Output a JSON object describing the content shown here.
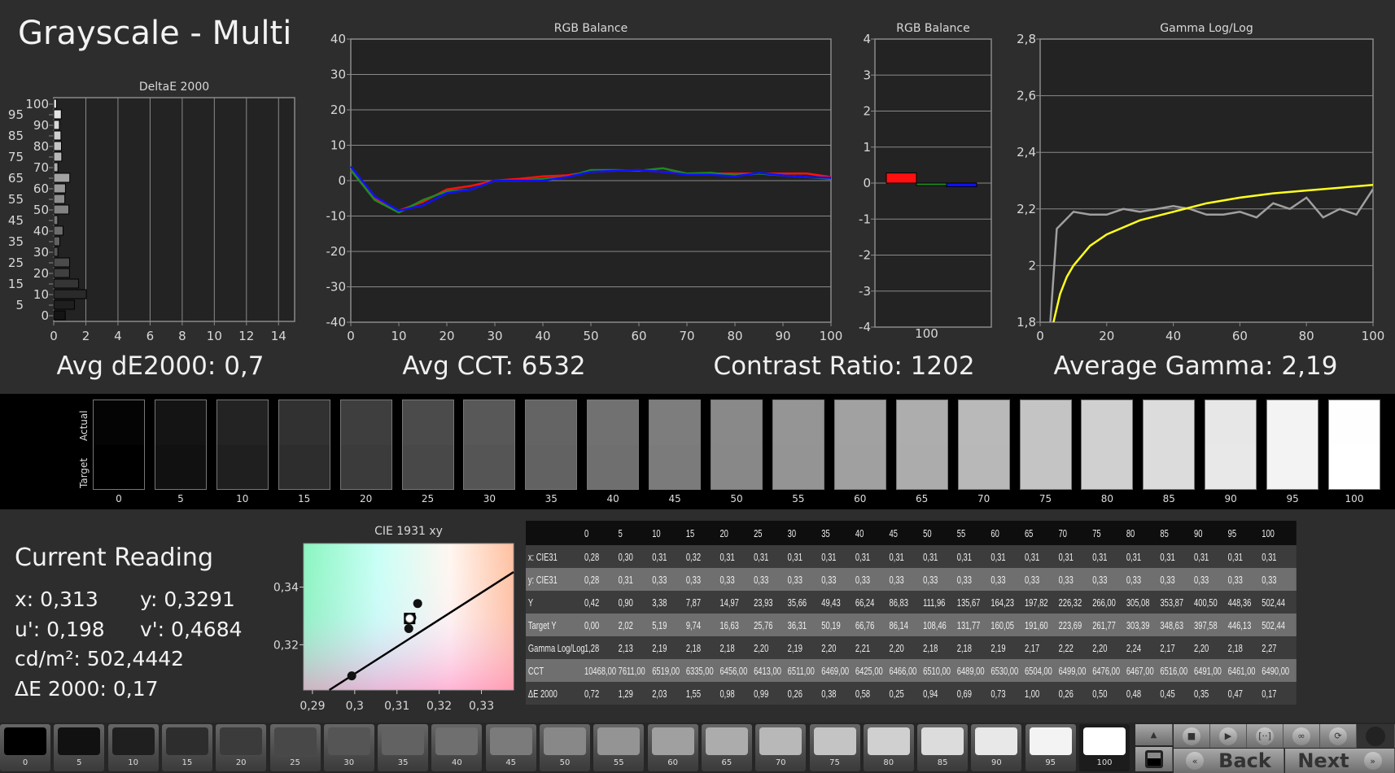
{
  "title": "Grayscale - Multi",
  "summary": {
    "avg_de": "Avg dE2000: 0,7",
    "avg_cct": "Avg CCT: 6532",
    "contrast": "Contrast Ratio: 1202",
    "avg_gamma": "Average Gamma: 2,19"
  },
  "colors": {
    "background": "#2d2d2d",
    "plot_bg": "#232323",
    "grid": "#8a8a8a",
    "red": "#ff1010",
    "green": "#1f8a1f",
    "blue": "#1010ff",
    "gamma_target": "#ffff20",
    "gamma_actual": "#a0a0a0"
  },
  "chart_data": [
    {
      "type": "bar",
      "orientation": "horizontal",
      "title": "DeltaE 2000",
      "categories": [
        0,
        5,
        10,
        15,
        20,
        25,
        30,
        35,
        40,
        45,
        50,
        55,
        60,
        65,
        70,
        75,
        80,
        85,
        90,
        95,
        100
      ],
      "values": [
        0.72,
        1.29,
        2.03,
        1.55,
        0.98,
        0.99,
        0.26,
        0.38,
        0.58,
        0.25,
        0.94,
        0.69,
        0.73,
        1.0,
        0.26,
        0.5,
        0.48,
        0.45,
        0.35,
        0.47,
        0.17
      ],
      "xlim": [
        0,
        15
      ],
      "xticks": [
        "0",
        "2",
        "4",
        "6",
        "8",
        "10",
        "12",
        "14"
      ],
      "grid": true
    },
    {
      "type": "line",
      "title": "RGB Balance",
      "x": [
        0,
        5,
        10,
        15,
        20,
        25,
        30,
        35,
        40,
        45,
        50,
        55,
        60,
        65,
        70,
        75,
        80,
        85,
        90,
        95,
        100
      ],
      "series": [
        {
          "color": "red",
          "values": [
            3,
            -5,
            -8.5,
            -6,
            -2.5,
            -1.5,
            0,
            0.5,
            1.2,
            1.5,
            2.5,
            2.8,
            3,
            2.5,
            2,
            2,
            2,
            2,
            2,
            2,
            1
          ]
        },
        {
          "color": "green",
          "values": [
            3,
            -5.5,
            -9,
            -5.5,
            -3,
            -2.5,
            0,
            0,
            0.5,
            1,
            3,
            3,
            2.8,
            3.5,
            2,
            2.2,
            1.5,
            2,
            1.5,
            1,
            0.5
          ]
        },
        {
          "color": "blue",
          "values": [
            4,
            -4.5,
            -8.5,
            -7,
            -3.5,
            -2.5,
            0,
            0,
            0,
            1,
            2.5,
            2.8,
            3,
            2.5,
            1.7,
            1.7,
            1.2,
            2.2,
            1.5,
            1,
            0.8
          ]
        }
      ],
      "xlim": [
        0,
        100
      ],
      "ylim": [
        -40,
        40
      ],
      "xticks": [
        "0",
        "10",
        "20",
        "30",
        "40",
        "50",
        "60",
        "70",
        "80",
        "90",
        "100"
      ],
      "yticks": [
        "40",
        "30",
        "20",
        "10",
        "0",
        "-10",
        "-20",
        "-30",
        "-40"
      ],
      "grid": true
    },
    {
      "type": "bar",
      "title": "RGB Balance",
      "categories": [
        "100"
      ],
      "series": [
        {
          "color": "red",
          "values": [
            0.28
          ]
        },
        {
          "color": "green",
          "values": [
            -0.05
          ]
        },
        {
          "color": "blue",
          "values": [
            -0.1
          ]
        }
      ],
      "ylim": [
        -4,
        4
      ],
      "yticks": [
        "4",
        "3",
        "2",
        "1",
        "0",
        "-1",
        "-2",
        "-3",
        "-4"
      ],
      "grid": true
    },
    {
      "type": "line",
      "title": "Gamma Log/Log",
      "x": [
        0,
        5,
        10,
        15,
        20,
        25,
        30,
        35,
        40,
        45,
        50,
        55,
        60,
        65,
        70,
        75,
        80,
        85,
        90,
        95,
        100
      ],
      "series": [
        {
          "color": "gamma_actual",
          "values": [
            1.28,
            2.13,
            2.19,
            2.18,
            2.18,
            2.2,
            2.19,
            2.2,
            2.21,
            2.2,
            2.18,
            2.18,
            2.19,
            2.17,
            2.22,
            2.2,
            2.24,
            2.17,
            2.2,
            2.18,
            2.27
          ]
        },
        {
          "color": "gamma_target",
          "x": [
            4,
            6,
            8,
            10,
            15,
            20,
            30,
            40,
            50,
            60,
            70,
            80,
            90,
            100
          ],
          "values": [
            1.8,
            1.9,
            1.96,
            2.0,
            2.07,
            2.11,
            2.16,
            2.19,
            2.22,
            2.24,
            2.255,
            2.265,
            2.275,
            2.285
          ]
        }
      ],
      "xlim": [
        0,
        100
      ],
      "ylim": [
        1.8,
        2.8
      ],
      "xticks": [
        "0",
        "20",
        "40",
        "60",
        "80",
        "100"
      ],
      "yticks": [
        "2,8",
        "2,6",
        "2,4",
        "2,2",
        "2",
        "1,8"
      ],
      "grid": true
    },
    {
      "type": "scatter",
      "title": "CIE 1931 xy",
      "xlim": [
        0.2879,
        0.3376
      ],
      "ylim": [
        0.3043,
        0.3551
      ],
      "xticks": [
        "0,29",
        "0,3",
        "0,31",
        "0,32",
        "0,33"
      ],
      "yticks": [
        "0,34",
        "0,32"
      ],
      "points": [
        [
          0.2993,
          0.3092
        ],
        [
          0.3128,
          0.3256
        ],
        [
          0.3149,
          0.3343
        ],
        [
          0.3135,
          0.3294
        ],
        [
          0.3128,
          0.3291
        ]
      ],
      "current": [
        0.313,
        0.3291
      ],
      "locus": [
        [
          0.294,
          0.3043
        ],
        [
          0.3376,
          0.3452
        ]
      ]
    }
  ],
  "strip": {
    "actual_label": "Actual",
    "target_label": "Target",
    "levels": [
      "0",
      "5",
      "10",
      "15",
      "20",
      "25",
      "30",
      "35",
      "40",
      "45",
      "50",
      "55",
      "60",
      "65",
      "70",
      "75",
      "80",
      "85",
      "90",
      "95",
      "100"
    ]
  },
  "reading": {
    "title": "Current Reading",
    "x": "x: 0,313",
    "y": "y: 0,3291",
    "u": "u': 0,198",
    "v": "v': 0,4684",
    "cdm2": "cd/m²: 502,4442",
    "de": "ΔE 2000: 0,17"
  },
  "table": {
    "headers": [
      "0",
      "5",
      "10",
      "15",
      "20",
      "25",
      "30",
      "35",
      "40",
      "45",
      "50",
      "55",
      "60",
      "65",
      "70",
      "75",
      "80",
      "85",
      "90",
      "95",
      "100"
    ],
    "rows": [
      {
        "label": "x: CIE31",
        "values": [
          "0,28",
          "0,30",
          "0,31",
          "0,32",
          "0,31",
          "0,31",
          "0,31",
          "0,31",
          "0,31",
          "0,31",
          "0,31",
          "0,31",
          "0,31",
          "0,31",
          "0,31",
          "0,31",
          "0,31",
          "0,31",
          "0,31",
          "0,31",
          "0,31"
        ]
      },
      {
        "label": "y: CIE31",
        "values": [
          "0,28",
          "0,31",
          "0,33",
          "0,33",
          "0,33",
          "0,33",
          "0,33",
          "0,33",
          "0,33",
          "0,33",
          "0,33",
          "0,33",
          "0,33",
          "0,33",
          "0,33",
          "0,33",
          "0,33",
          "0,33",
          "0,33",
          "0,33",
          "0,33"
        ]
      },
      {
        "label": "Y",
        "values": [
          "0,42",
          "0,90",
          "3,38",
          "7,87",
          "14,97",
          "23,93",
          "35,66",
          "49,43",
          "66,24",
          "86,83",
          "111,96",
          "135,67",
          "164,23",
          "197,82",
          "226,32",
          "266,00",
          "305,08",
          "353,87",
          "400,50",
          "448,36",
          "502,44"
        ]
      },
      {
        "label": "Target Y",
        "values": [
          "0,00",
          "2,02",
          "5,19",
          "9,74",
          "16,63",
          "25,76",
          "36,31",
          "50,19",
          "66,76",
          "86,14",
          "108,46",
          "131,77",
          "160,05",
          "191,60",
          "223,69",
          "261,77",
          "303,39",
          "348,63",
          "397,58",
          "446,13",
          "502,44"
        ]
      },
      {
        "label": "Gamma Log/Log",
        "values": [
          "1,28",
          "2,13",
          "2,19",
          "2,18",
          "2,18",
          "2,20",
          "2,19",
          "2,20",
          "2,21",
          "2,20",
          "2,18",
          "2,18",
          "2,19",
          "2,17",
          "2,22",
          "2,20",
          "2,24",
          "2,17",
          "2,20",
          "2,18",
          "2,27"
        ]
      },
      {
        "label": "CCT",
        "values": [
          "10468,00",
          "7611,00",
          "6519,00",
          "6335,00",
          "6456,00",
          "6413,00",
          "6511,00",
          "6469,00",
          "6425,00",
          "6466,00",
          "6510,00",
          "6489,00",
          "6530,00",
          "6504,00",
          "6499,00",
          "6476,00",
          "6467,00",
          "6516,00",
          "6491,00",
          "6461,00",
          "6490,00"
        ]
      },
      {
        "label": "ΔE 2000",
        "values": [
          "0,72",
          "1,29",
          "2,03",
          "1,55",
          "0,98",
          "0,99",
          "0,26",
          "0,38",
          "0,58",
          "0,25",
          "0,94",
          "0,69",
          "0,73",
          "1,00",
          "0,26",
          "0,50",
          "0,48",
          "0,45",
          "0,35",
          "0,47",
          "0,17"
        ]
      }
    ]
  },
  "toolbar": {
    "levels": [
      "0",
      "5",
      "10",
      "15",
      "20",
      "25",
      "30",
      "35",
      "40",
      "45",
      "50",
      "55",
      "60",
      "65",
      "70",
      "75",
      "80",
      "85",
      "90",
      "95",
      "100"
    ],
    "selected": "100",
    "back_label": "Back",
    "next_label": "Next",
    "icons": [
      "stop-icon",
      "play-icon",
      "continuous-measure-icon",
      "loop-icon",
      "refresh-icon"
    ]
  }
}
